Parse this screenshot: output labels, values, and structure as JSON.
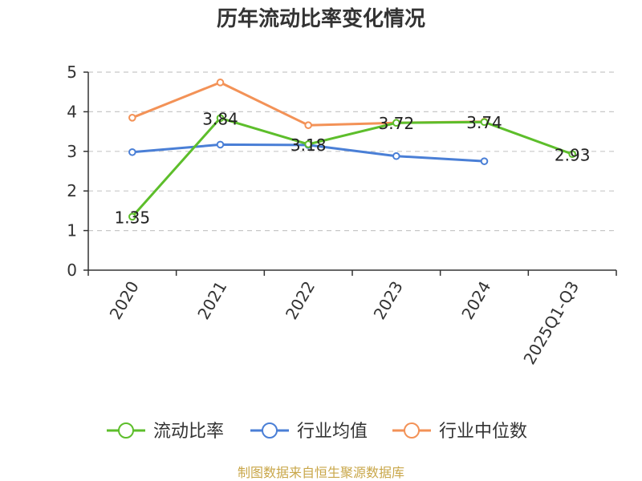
{
  "chart_data": {
    "type": "line",
    "title": "历年流动比率变化情况",
    "categories": [
      "2020",
      "2021",
      "2022",
      "2023",
      "2024",
      "2025Q1-Q3"
    ],
    "ylim": [
      0,
      5
    ],
    "yticks": [
      0,
      1,
      2,
      3,
      4,
      5
    ],
    "grid": true,
    "series": [
      {
        "name": "流动比率",
        "color": "#5dbe2b",
        "values": [
          1.35,
          3.84,
          3.18,
          3.72,
          3.74,
          2.93
        ],
        "labels": [
          "1.35",
          "3.84",
          "3.18",
          "3.72",
          "3.74",
          "2.93"
        ]
      },
      {
        "name": "行业均值",
        "color": "#4a7fd6",
        "values": [
          2.98,
          3.17,
          3.16,
          2.88,
          2.75,
          null
        ]
      },
      {
        "name": "行业中位数",
        "color": "#f39257",
        "values": [
          3.85,
          4.74,
          3.66,
          3.72,
          3.75,
          null
        ]
      }
    ],
    "legend_position": "bottom-center",
    "source": "制图数据来自恒生聚源数据库",
    "source_color": "#c9a74a"
  }
}
